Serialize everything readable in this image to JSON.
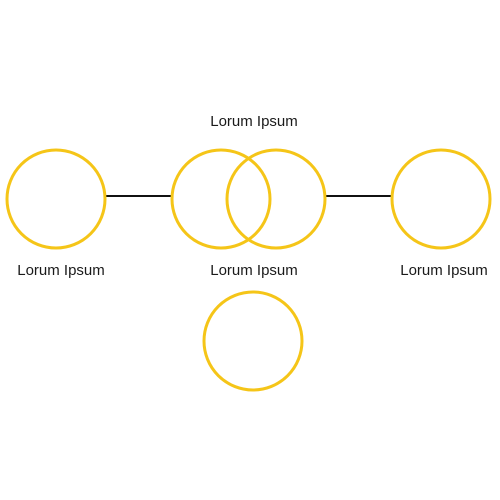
{
  "colors": {
    "circle_stroke": "#f5c518",
    "connector": "#111111",
    "text": "#1a1a1a",
    "background": "#ffffff"
  },
  "labels": {
    "top_center": "Lorum Ipsum",
    "left": "Lorum Ipsum",
    "center": "Lorum Ipsum",
    "right": "Lorum Ipsum"
  }
}
